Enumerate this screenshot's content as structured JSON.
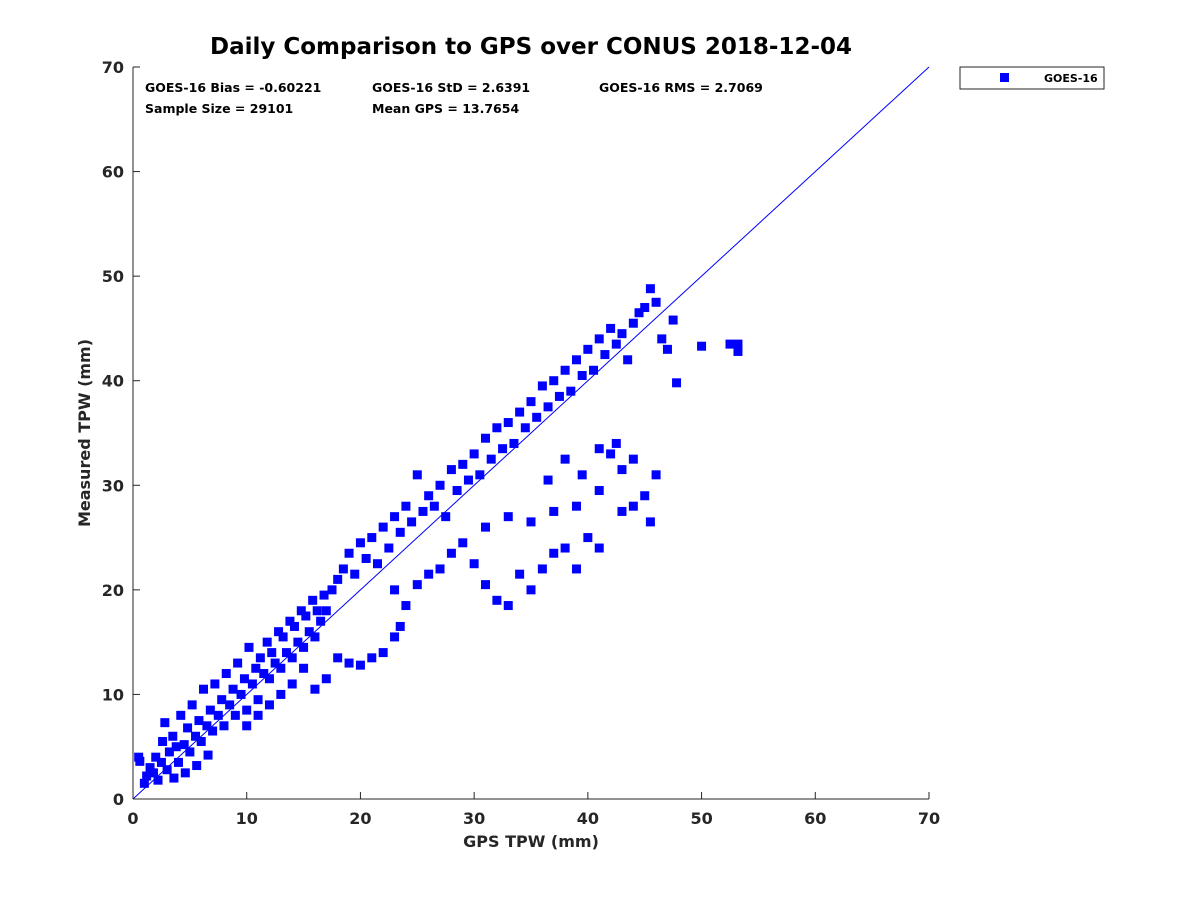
{
  "chart_data": {
    "type": "scatter",
    "title": "Daily Comparison to GPS over CONUS 2018-12-04",
    "xlabel": "GPS TPW (mm)",
    "ylabel": "Measured TPW (mm)",
    "xlim": [
      0,
      70
    ],
    "ylim": [
      0,
      70
    ],
    "xticks": [
      "0",
      "10",
      "20",
      "30",
      "40",
      "50",
      "60",
      "70"
    ],
    "yticks": [
      "0",
      "10",
      "20",
      "30",
      "40",
      "50",
      "60",
      "70"
    ],
    "grid": false,
    "legend_position": "outside-top-right",
    "annotations": [
      "GOES-16 Bias = -0.60221",
      "GOES-16 StD = 2.6391",
      "GOES-16 RMS = 2.7069",
      "Sample Size = 29101",
      "Mean GPS = 13.7654"
    ],
    "reference_line": {
      "from": [
        0,
        0
      ],
      "to": [
        70,
        70
      ],
      "color": "#0000ff"
    },
    "series": [
      {
        "name": "GOES-16",
        "color": "#0000ff",
        "marker": "square",
        "points": [
          [
            0.5,
            4.0
          ],
          [
            0.6,
            3.6
          ],
          [
            1.0,
            1.5
          ],
          [
            1.2,
            2.2
          ],
          [
            1.5,
            3.0
          ],
          [
            1.8,
            2.5
          ],
          [
            2.0,
            4.0
          ],
          [
            2.2,
            1.8
          ],
          [
            2.5,
            3.5
          ],
          [
            2.6,
            5.5
          ],
          [
            2.8,
            7.3
          ],
          [
            3.0,
            2.8
          ],
          [
            3.2,
            4.5
          ],
          [
            3.5,
            6.0
          ],
          [
            3.6,
            2.0
          ],
          [
            3.8,
            5.0
          ],
          [
            4.0,
            3.5
          ],
          [
            4.2,
            8.0
          ],
          [
            4.5,
            5.2
          ],
          [
            4.6,
            2.5
          ],
          [
            4.8,
            6.8
          ],
          [
            5.0,
            4.5
          ],
          [
            5.2,
            9.0
          ],
          [
            5.5,
            6.0
          ],
          [
            5.6,
            3.2
          ],
          [
            5.8,
            7.5
          ],
          [
            6.0,
            5.5
          ],
          [
            6.2,
            10.5
          ],
          [
            6.5,
            7.0
          ],
          [
            6.6,
            4.2
          ],
          [
            6.8,
            8.5
          ],
          [
            7.0,
            6.5
          ],
          [
            7.2,
            11.0
          ],
          [
            7.5,
            8.0
          ],
          [
            7.8,
            9.5
          ],
          [
            8.0,
            7.0
          ],
          [
            8.2,
            12.0
          ],
          [
            8.5,
            9.0
          ],
          [
            8.8,
            10.5
          ],
          [
            9.0,
            8.0
          ],
          [
            9.2,
            13.0
          ],
          [
            9.5,
            10.0
          ],
          [
            9.8,
            11.5
          ],
          [
            10.0,
            8.5
          ],
          [
            10.2,
            14.5
          ],
          [
            10.5,
            11.0
          ],
          [
            10.8,
            12.5
          ],
          [
            11.0,
            9.5
          ],
          [
            11.2,
            13.5
          ],
          [
            11.5,
            12.0
          ],
          [
            11.8,
            15.0
          ],
          [
            12.0,
            11.5
          ],
          [
            12.2,
            14.0
          ],
          [
            12.5,
            13.0
          ],
          [
            12.8,
            16.0
          ],
          [
            13.0,
            12.5
          ],
          [
            13.2,
            15.5
          ],
          [
            13.5,
            14.0
          ],
          [
            13.8,
            17.0
          ],
          [
            14.0,
            13.5
          ],
          [
            14.2,
            16.5
          ],
          [
            14.5,
            15.0
          ],
          [
            14.8,
            18.0
          ],
          [
            15.0,
            14.5
          ],
          [
            15.2,
            17.5
          ],
          [
            15.5,
            16.0
          ],
          [
            15.8,
            19.0
          ],
          [
            16.0,
            15.5
          ],
          [
            16.2,
            18.0
          ],
          [
            16.5,
            17.0
          ],
          [
            16.8,
            19.5
          ],
          [
            17.0,
            18.0
          ],
          [
            17.5,
            20.0
          ],
          [
            18.0,
            21.0
          ],
          [
            18.5,
            22.0
          ],
          [
            19.0,
            23.5
          ],
          [
            19.5,
            21.5
          ],
          [
            20.0,
            24.5
          ],
          [
            20.5,
            23.0
          ],
          [
            21.0,
            25.0
          ],
          [
            21.5,
            22.5
          ],
          [
            22.0,
            26.0
          ],
          [
            22.5,
            24.0
          ],
          [
            23.0,
            27.0
          ],
          [
            23.5,
            25.5
          ],
          [
            24.0,
            28.0
          ],
          [
            24.5,
            26.5
          ],
          [
            25.0,
            31.0
          ],
          [
            25.5,
            27.5
          ],
          [
            26.0,
            29.0
          ],
          [
            26.5,
            28.0
          ],
          [
            27.0,
            30.0
          ],
          [
            27.5,
            27.0
          ],
          [
            28.0,
            31.5
          ],
          [
            28.5,
            29.5
          ],
          [
            29.0,
            32.0
          ],
          [
            29.5,
            30.5
          ],
          [
            30.0,
            33.0
          ],
          [
            30.5,
            31.0
          ],
          [
            31.0,
            34.5
          ],
          [
            31.5,
            32.5
          ],
          [
            32.0,
            35.5
          ],
          [
            32.5,
            33.5
          ],
          [
            33.0,
            36.0
          ],
          [
            33.5,
            34.0
          ],
          [
            34.0,
            37.0
          ],
          [
            34.5,
            35.5
          ],
          [
            35.0,
            38.0
          ],
          [
            35.5,
            36.5
          ],
          [
            36.0,
            39.5
          ],
          [
            36.5,
            37.5
          ],
          [
            37.0,
            40.0
          ],
          [
            37.5,
            38.5
          ],
          [
            38.0,
            41.0
          ],
          [
            38.5,
            39.0
          ],
          [
            39.0,
            42.0
          ],
          [
            39.5,
            40.5
          ],
          [
            40.0,
            43.0
          ],
          [
            40.5,
            41.0
          ],
          [
            41.0,
            44.0
          ],
          [
            41.5,
            42.5
          ],
          [
            42.0,
            45.0
          ],
          [
            42.5,
            43.5
          ],
          [
            43.0,
            44.5
          ],
          [
            43.5,
            42.0
          ],
          [
            44.0,
            45.5
          ],
          [
            44.5,
            46.5
          ],
          [
            45.0,
            47.0
          ],
          [
            45.5,
            48.8
          ],
          [
            46.0,
            47.5
          ],
          [
            46.5,
            44.0
          ],
          [
            47.0,
            43.0
          ],
          [
            47.5,
            45.8
          ],
          [
            47.8,
            39.8
          ],
          [
            50.0,
            43.3
          ],
          [
            52.5,
            43.5
          ],
          [
            53.2,
            42.8
          ],
          [
            53.2,
            43.5
          ],
          [
            14.0,
            11.0
          ],
          [
            15.0,
            12.5
          ],
          [
            16.0,
            10.5
          ],
          [
            17.0,
            11.5
          ],
          [
            18.0,
            13.5
          ],
          [
            19.0,
            13.0
          ],
          [
            20.0,
            12.8
          ],
          [
            21.0,
            13.5
          ],
          [
            22.0,
            14.0
          ],
          [
            23.0,
            15.5
          ],
          [
            23.5,
            16.5
          ],
          [
            10.0,
            7.0
          ],
          [
            11.0,
            8.0
          ],
          [
            12.0,
            9.0
          ],
          [
            13.0,
            10.0
          ],
          [
            23.0,
            20.0
          ],
          [
            24.0,
            18.5
          ],
          [
            25.0,
            20.5
          ],
          [
            26.0,
            21.5
          ],
          [
            27.0,
            22.0
          ],
          [
            28.0,
            23.5
          ],
          [
            29.0,
            24.5
          ],
          [
            30.0,
            22.5
          ],
          [
            31.0,
            20.5
          ],
          [
            32.0,
            19.0
          ],
          [
            33.0,
            18.5
          ],
          [
            34.0,
            21.5
          ],
          [
            35.0,
            20.0
          ],
          [
            36.0,
            22.0
          ],
          [
            37.0,
            23.5
          ],
          [
            38.0,
            24.0
          ],
          [
            39.0,
            22.0
          ],
          [
            40.0,
            25.0
          ],
          [
            41.0,
            24.0
          ],
          [
            31.0,
            26.0
          ],
          [
            33.0,
            27.0
          ],
          [
            35.0,
            26.5
          ],
          [
            37.0,
            27.5
          ],
          [
            39.0,
            28.0
          ],
          [
            41.0,
            29.5
          ],
          [
            43.0,
            27.5
          ],
          [
            44.0,
            28.0
          ],
          [
            45.0,
            29.0
          ],
          [
            45.5,
            26.5
          ],
          [
            46.0,
            31.0
          ],
          [
            43.0,
            31.5
          ],
          [
            42.0,
            33.0
          ],
          [
            44.0,
            32.5
          ],
          [
            41.0,
            33.5
          ],
          [
            42.5,
            34.0
          ],
          [
            39.5,
            31.0
          ],
          [
            36.5,
            30.5
          ],
          [
            38.0,
            32.5
          ]
        ]
      }
    ]
  }
}
